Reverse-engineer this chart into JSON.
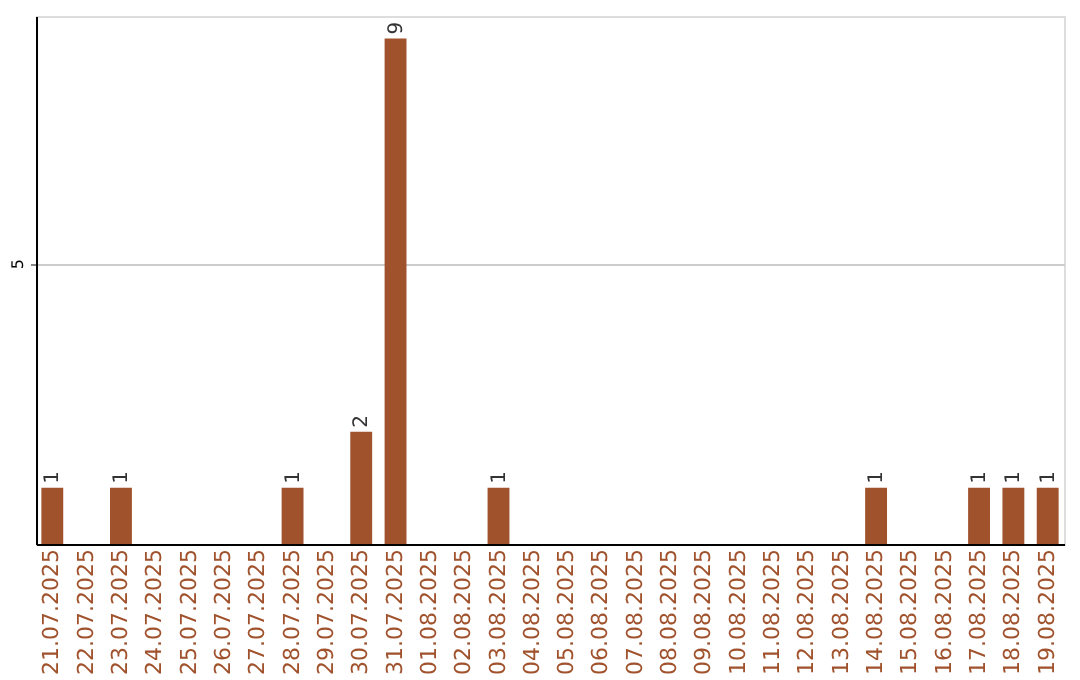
{
  "chart_data": {
    "type": "bar",
    "categories": [
      "21.07.2025",
      "22.07.2025",
      "23.07.2025",
      "24.07.2025",
      "25.07.2025",
      "26.07.2025",
      "27.07.2025",
      "28.07.2025",
      "29.07.2025",
      "30.07.2025",
      "31.07.2025",
      "01.08.2025",
      "02.08.2025",
      "03.08.2025",
      "04.08.2025",
      "05.08.2025",
      "06.08.2025",
      "07.08.2025",
      "08.08.2025",
      "09.08.2025",
      "10.08.2025",
      "11.08.2025",
      "12.08.2025",
      "13.08.2025",
      "14.08.2025",
      "15.08.2025",
      "16.08.2025",
      "17.08.2025",
      "18.08.2025",
      "19.08.2025"
    ],
    "values": [
      1,
      0,
      1,
      0,
      0,
      0,
      0,
      1,
      0,
      2,
      9,
      0,
      0,
      1,
      0,
      0,
      0,
      0,
      0,
      0,
      0,
      0,
      0,
      0,
      1,
      0,
      0,
      1,
      1,
      1
    ],
    "value_labels": [
      "1",
      null,
      "1",
      null,
      null,
      null,
      null,
      "1",
      null,
      "2",
      "9",
      null,
      null,
      "1",
      null,
      null,
      null,
      null,
      null,
      null,
      null,
      null,
      null,
      null,
      "1",
      null,
      null,
      "1",
      "1",
      "1"
    ],
    "color": "#a0522d",
    "ylim": [
      0,
      9.4
    ],
    "yticks": [
      5
    ],
    "grid": "y"
  }
}
